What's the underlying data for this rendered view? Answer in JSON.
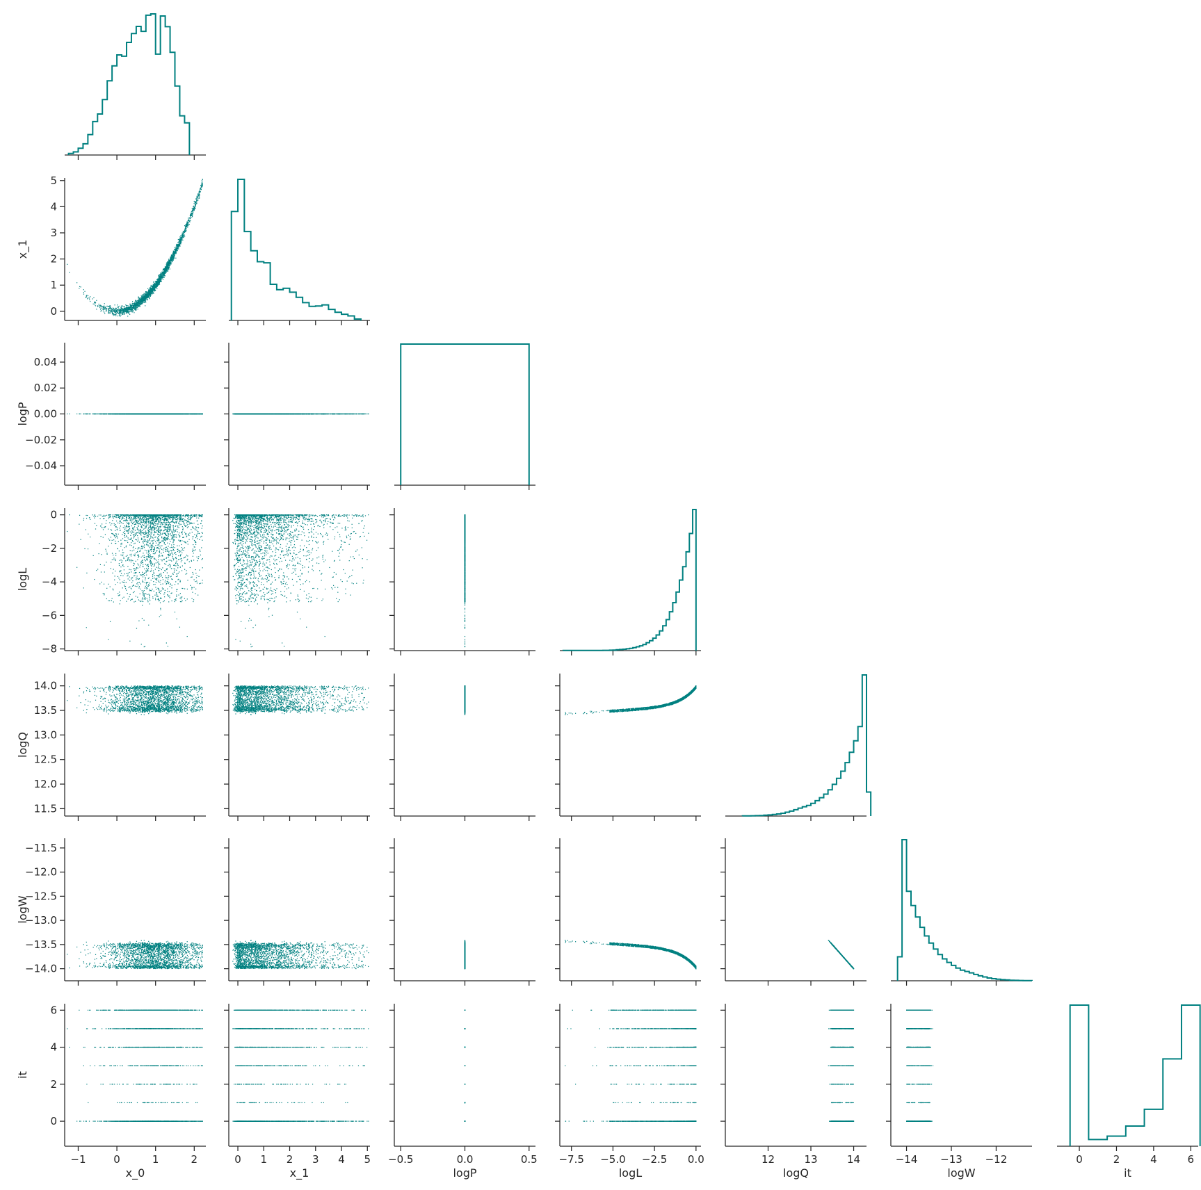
{
  "chart_data": {
    "type": "scatter",
    "title": "",
    "layout": "corner",
    "color": "#008080",
    "legend": "none",
    "grid": false,
    "variables": [
      {
        "name": "x_0",
        "label": "x_0",
        "range": [
          -1.35,
          2.3
        ],
        "ticks": [
          -1,
          0,
          1,
          2
        ],
        "tick_labels": [
          "−1",
          "0",
          "1",
          "2"
        ]
      },
      {
        "name": "x_1",
        "label": "x_1",
        "range": [
          -0.35,
          5.1
        ],
        "ticks": [
          0,
          1,
          2,
          3,
          4,
          5
        ],
        "tick_labels": [
          "0",
          "1",
          "2",
          "3",
          "4",
          "5"
        ]
      },
      {
        "name": "logP",
        "label": "logP",
        "range": [
          -0.055,
          0.055
        ],
        "ticks": [
          -0.04,
          -0.02,
          0.0,
          0.02,
          0.04
        ],
        "tick_labels": [
          "−0.04",
          "−0.02",
          "0.00",
          "0.02",
          "0.04"
        ],
        "x_range": [
          -0.55,
          0.55
        ],
        "x_ticks": [
          -0.5,
          0.0,
          0.5
        ],
        "x_tick_labels": [
          "−0.5",
          "0.0",
          "0.5"
        ]
      },
      {
        "name": "logL",
        "label": "logL",
        "range": [
          -8.1,
          0.4
        ],
        "ticks": [
          -8,
          -6,
          -4,
          -2,
          0
        ],
        "tick_labels": [
          "−8",
          "−6",
          "−4",
          "−2",
          "0"
        ],
        "x_range": [
          -8.2,
          0.3
        ],
        "x_ticks": [
          -7.5,
          -5.0,
          -2.5,
          0.0
        ],
        "x_tick_labels": [
          "−7.5",
          "−5.0",
          "−2.5",
          "0.0"
        ]
      },
      {
        "name": "logQ",
        "label": "logQ",
        "range": [
          11.35,
          14.25
        ],
        "ticks": [
          11.5,
          12.0,
          12.5,
          13.0,
          13.5,
          14.0
        ],
        "tick_labels": [
          "11.5",
          "12.0",
          "12.5",
          "13.0",
          "13.5",
          "14.0"
        ],
        "x_range": [
          11.0,
          14.3
        ],
        "x_ticks": [
          12,
          13,
          14
        ],
        "x_tick_labels": [
          "12",
          "13",
          "14"
        ]
      },
      {
        "name": "logW",
        "label": "logW",
        "range": [
          -14.25,
          -11.3
        ],
        "ticks": [
          -14.0,
          -13.5,
          -13.0,
          -12.5,
          -12.0,
          -11.5
        ],
        "tick_labels": [
          "−14.0",
          "−13.5",
          "−13.0",
          "−12.5",
          "−12.0",
          "−11.5"
        ],
        "x_range": [
          -14.35,
          -11.2
        ],
        "x_ticks": [
          -14,
          -13,
          -12
        ],
        "x_tick_labels": [
          "−14",
          "−13",
          "−12"
        ]
      },
      {
        "name": "it",
        "label": "it",
        "range": [
          -1.35,
          6.35
        ],
        "ticks": [
          0,
          2,
          4,
          6
        ],
        "tick_labels": [
          "0",
          "2",
          "4",
          "6"
        ],
        "x_range": [
          -1.2,
          6.4
        ],
        "x_ticks": [
          0,
          2,
          4,
          6
        ],
        "x_tick_labels": [
          "0",
          "2",
          "4",
          "6"
        ]
      }
    ],
    "histograms": [
      {
        "variable": "x_0",
        "edges_start": -1.25,
        "bin_width": 0.125,
        "max": 54.0,
        "counts": [
          0.6,
          1.2,
          2.6,
          4.3,
          7.8,
          12.8,
          15.7,
          21.2,
          28.4,
          34.1,
          38.3,
          37.8,
          43.1,
          46.5,
          49.2,
          47.3,
          53.5,
          54.0,
          38.6,
          53.2,
          49.1,
          39.3,
          26.4,
          15.0,
          12.3
        ]
      },
      {
        "variable": "x_1",
        "edges_start": -0.25,
        "bin_width": 0.25,
        "max": 50.0,
        "counts": [
          38.6,
          50.0,
          31.5,
          24.7,
          20.8,
          20.4,
          12.8,
          10.9,
          11.4,
          10.0,
          8.2,
          6.3,
          5.0,
          5.1,
          5.5,
          3.9,
          2.9,
          2.2,
          1.6,
          0.5
        ]
      },
      {
        "variable": "logP",
        "edges": [
          -0.5,
          0.5
        ],
        "counts": [
          1.0
        ],
        "max": 1.0
      },
      {
        "variable": "logL",
        "edges_start": -8.0,
        "bin_width": 0.2,
        "max": 100.0,
        "counts": [
          0.1,
          0.1,
          0.1,
          0.1,
          0.1,
          0.1,
          0.1,
          0.1,
          0.1,
          0.1,
          0.1,
          0.1,
          0.2,
          0.2,
          0.3,
          0.4,
          0.6,
          0.8,
          1.0,
          1.3,
          1.6,
          2.1,
          2.7,
          3.4,
          4.3,
          5.6,
          7.0,
          8.8,
          11.1,
          14.0,
          17.6,
          22.0,
          27.5,
          34.0,
          41.5,
          50.0,
          59.5,
          70.0,
          83.0,
          100.0
        ]
      },
      {
        "variable": "logQ",
        "edges_start": 11.4,
        "bin_width": 0.1,
        "max": 100.0,
        "counts": [
          0.1,
          0.1,
          0.2,
          0.3,
          0.4,
          0.6,
          0.8,
          1.1,
          1.5,
          2.0,
          2.7,
          3.5,
          4.5,
          5.6,
          6.6,
          7.5,
          9.0,
          10.9,
          13.0,
          15.5,
          18.6,
          22.5,
          26.7,
          31.8,
          37.9,
          45.2,
          53.3,
          63.4,
          100.0,
          17.0
        ]
      },
      {
        "variable": "logW",
        "edges_start": -14.2,
        "bin_width": 0.1,
        "max": 100.0,
        "counts": [
          17.0,
          100.0,
          63.4,
          53.3,
          45.2,
          37.9,
          31.8,
          26.7,
          22.5,
          18.6,
          15.5,
          13.0,
          10.9,
          9.0,
          7.5,
          6.6,
          5.6,
          4.5,
          3.5,
          2.7,
          2.0,
          1.5,
          1.1,
          0.8,
          0.6,
          0.4,
          0.3,
          0.2,
          0.1,
          0.1
        ]
      },
      {
        "variable": "it",
        "edges_start": -0.5,
        "bin_width": 1.0,
        "max": 0.42,
        "counts": [
          0.42,
          0.02,
          0.03,
          0.06,
          0.11,
          0.26,
          0.42
        ]
      }
    ],
    "scatter_note_shape": [
      {
        "pair": [
          "x_0",
          "x_1"
        ],
        "relation": "x_1 = x_0^2"
      }
    ]
  }
}
